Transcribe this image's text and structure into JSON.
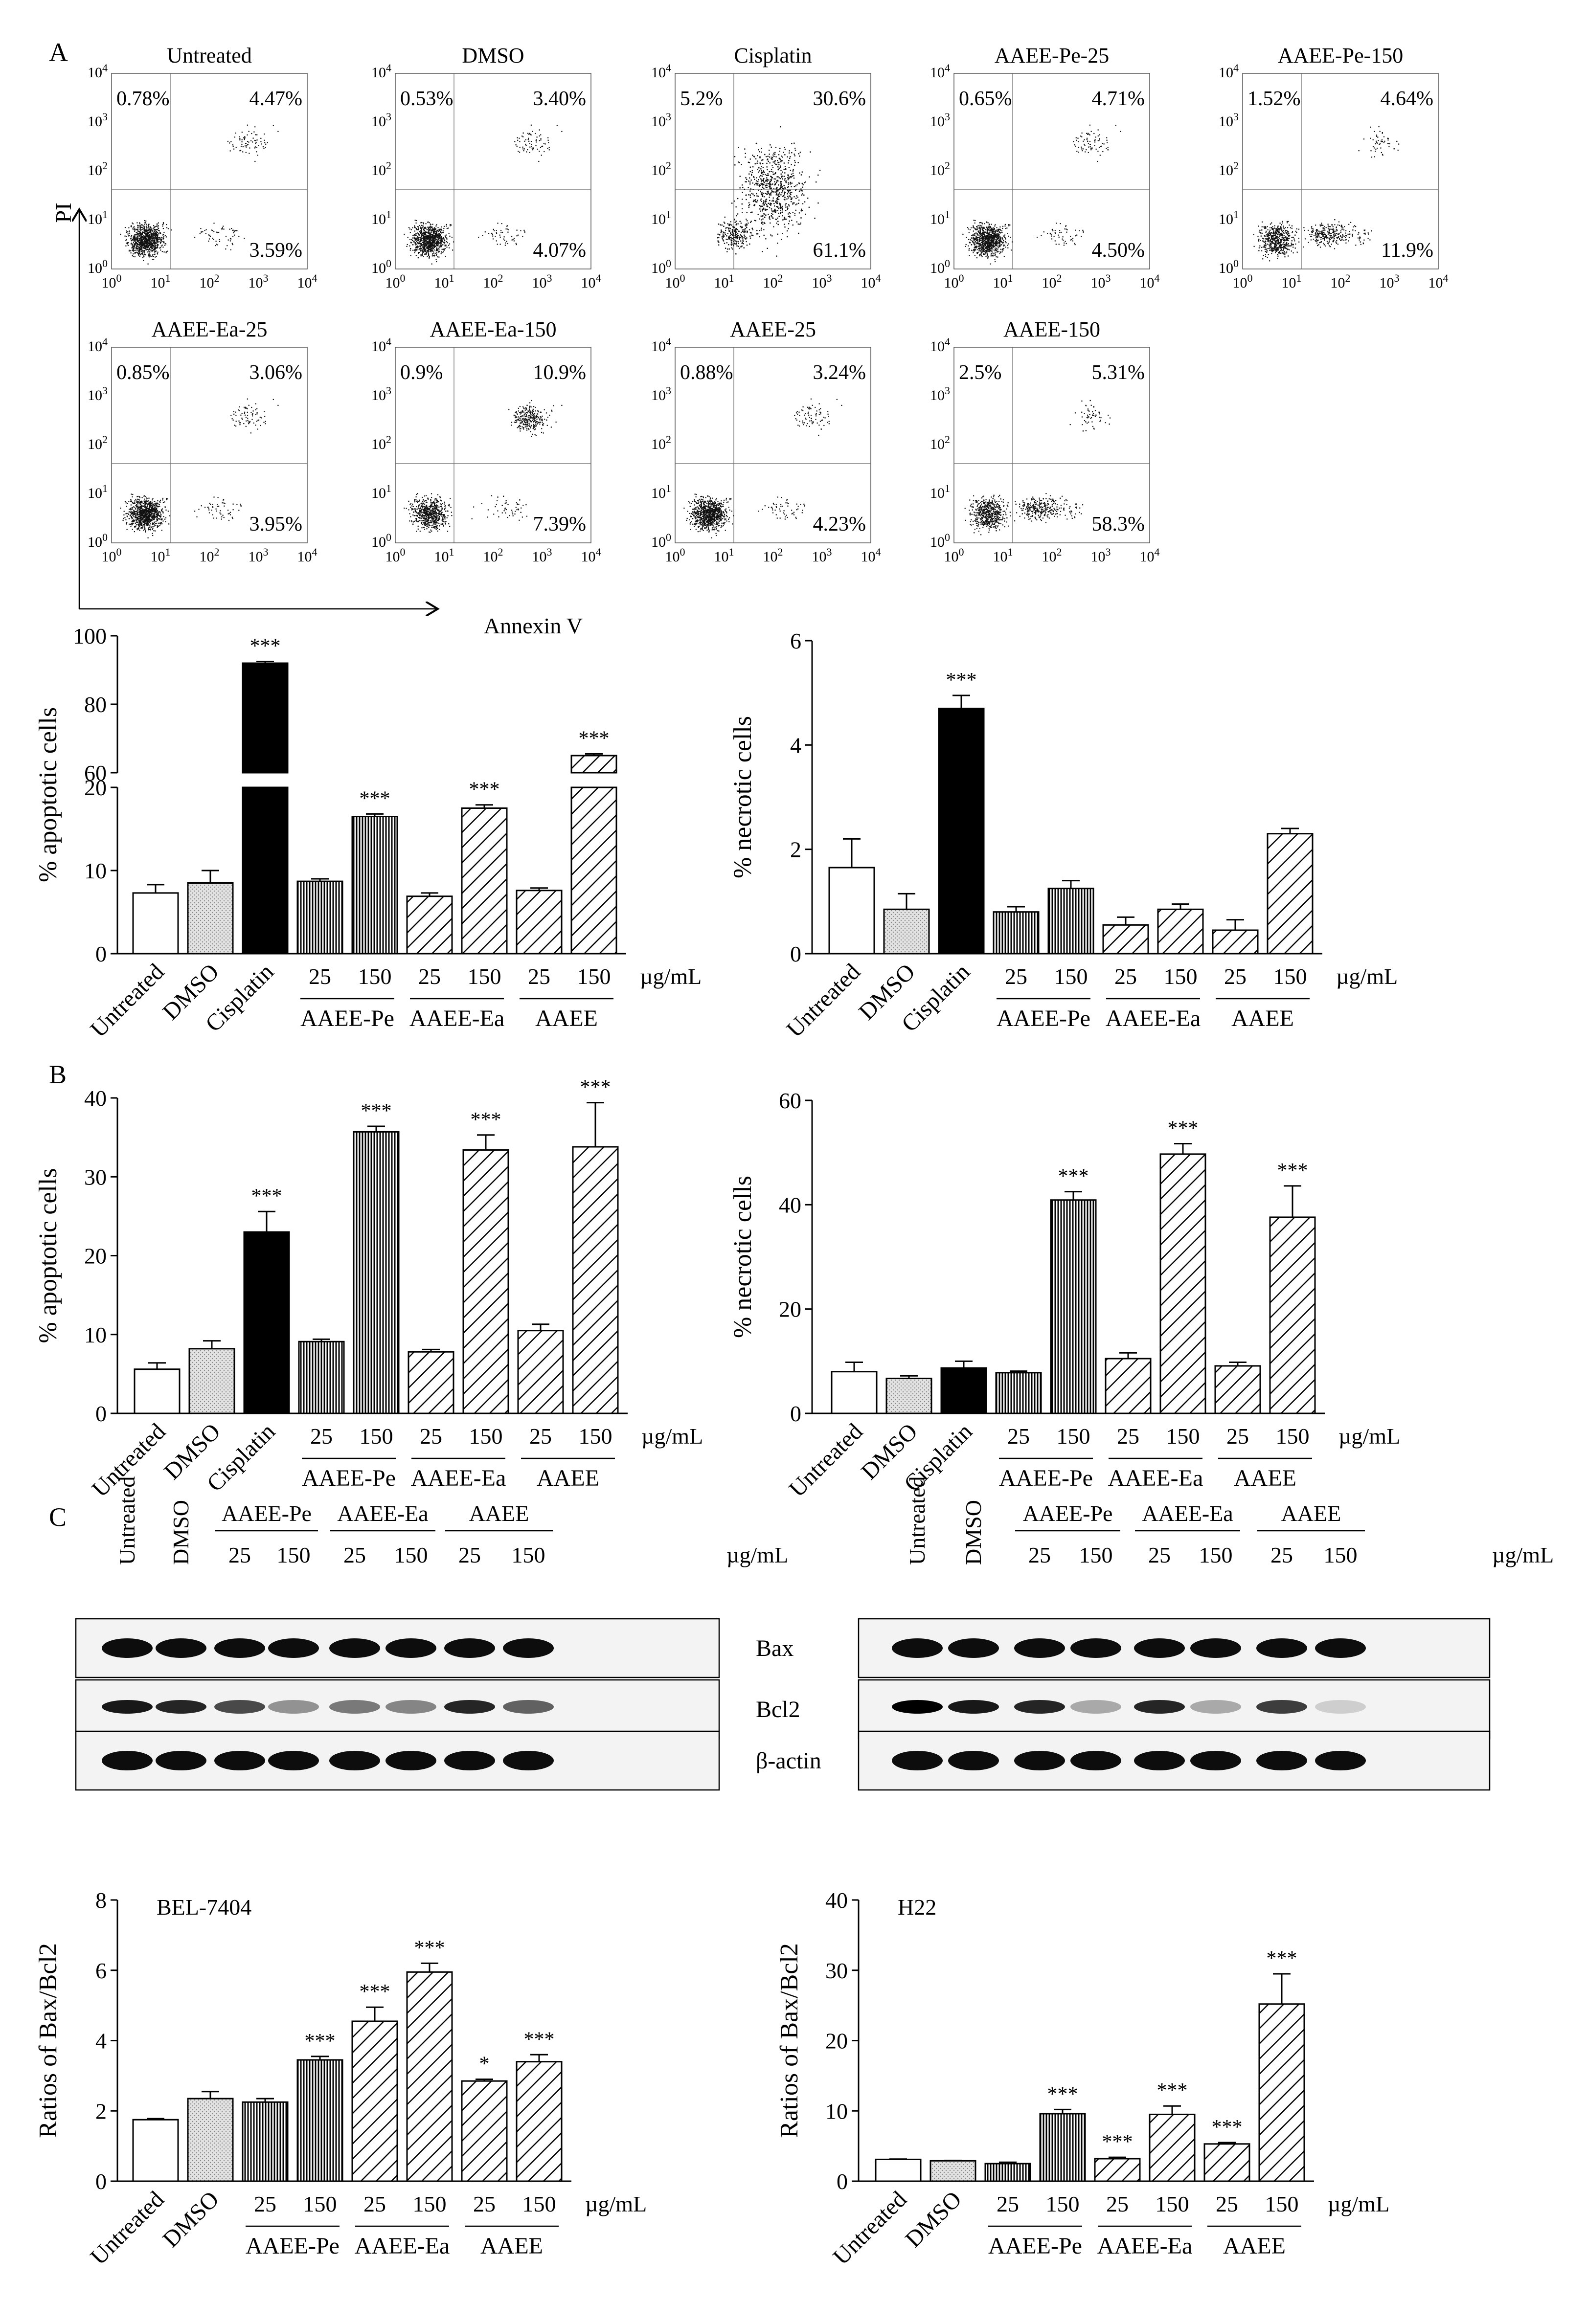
{
  "panel_labels": {
    "A": "A",
    "B": "B",
    "C": "C"
  },
  "flow": {
    "x_label": "Annexin V",
    "y_label": "PI",
    "tick_base": "10",
    "tick_exponents": [
      "0",
      "1",
      "2",
      "3",
      "4"
    ],
    "plots": [
      {
        "title": "Untreated",
        "ul": "0.78%",
        "ur": "4.47%",
        "lr": "3.59%",
        "pattern": "normal"
      },
      {
        "title": "DMSO",
        "ul": "0.53%",
        "ur": "3.40%",
        "lr": "4.07%",
        "pattern": "normal"
      },
      {
        "title": "Cisplatin",
        "ul": "5.2%",
        "ur": "30.6%",
        "lr": "61.1%",
        "pattern": "spread"
      },
      {
        "title": "AAEE-Pe-25",
        "ul": "0.65%",
        "ur": "4.71%",
        "lr": "4.50%",
        "pattern": "normal"
      },
      {
        "title": "AAEE-Pe-150",
        "ul": "1.52%",
        "ur": "4.64%",
        "lr": "11.9%",
        "pattern": "right"
      },
      {
        "title": "AAEE-Ea-25",
        "ul": "0.85%",
        "ur": "3.06%",
        "lr": "3.95%",
        "pattern": "normal"
      },
      {
        "title": "AAEE-Ea-150",
        "ul": "0.9%",
        "ur": "10.9%",
        "lr": "7.39%",
        "pattern": "upper"
      },
      {
        "title": "AAEE-25",
        "ul": "0.88%",
        "ur": "3.24%",
        "lr": "4.23%",
        "pattern": "normal"
      },
      {
        "title": "AAEE-150",
        "ul": "2.5%",
        "ur": "5.31%",
        "lr": "58.3%",
        "pattern": "right"
      }
    ]
  },
  "groups": {
    "conc_labels": [
      "25",
      "150"
    ],
    "unit": "µg/mL",
    "names": [
      "AAEE-Pe",
      "AAEE-Ea",
      "AAEE"
    ],
    "single_labels": [
      "Untreated",
      "DMSO",
      "Cisplatin"
    ]
  },
  "colors": {
    "black": "#000000",
    "dmso_fill": "#d9d9d9",
    "white": "#ffffff"
  },
  "chart_data": [
    {
      "id": "A_apoptotic",
      "type": "bar",
      "ylabel": "% apoptotic cells",
      "broken_axis": true,
      "ylim": [
        0,
        100
      ],
      "lower_ticks": [
        "0",
        "10",
        "20"
      ],
      "upper_ticks": [
        "60",
        "80",
        "100"
      ],
      "categories": [
        "Untreated",
        "DMSO",
        "Cisplatin",
        "AAEE-Pe 25",
        "AAEE-Pe 150",
        "AAEE-Ea 25",
        "AAEE-Ea 150",
        "AAEE 25",
        "AAEE 150"
      ],
      "values": [
        7.3,
        8.5,
        92,
        8.7,
        16.5,
        6.9,
        17.5,
        7.6,
        65
      ],
      "errors": [
        1.0,
        1.5,
        0.5,
        0.3,
        0.3,
        0.4,
        0.4,
        0.3,
        0.5
      ],
      "significance": [
        "",
        "",
        "***",
        "",
        "***",
        "",
        "***",
        "",
        "***"
      ]
    },
    {
      "id": "A_necrotic",
      "type": "bar",
      "ylabel": "% necrotic cells",
      "ylim": [
        0,
        6
      ],
      "ticks": [
        "0",
        "2",
        "4",
        "6"
      ],
      "categories": [
        "Untreated",
        "DMSO",
        "Cisplatin",
        "AAEE-Pe 25",
        "AAEE-Pe 150",
        "AAEE-Ea 25",
        "AAEE-Ea 150",
        "AAEE 25",
        "AAEE 150"
      ],
      "values": [
        1.65,
        0.85,
        4.7,
        0.8,
        1.25,
        0.55,
        0.85,
        0.45,
        2.3
      ],
      "errors": [
        0.55,
        0.3,
        0.25,
        0.1,
        0.15,
        0.15,
        0.1,
        0.2,
        0.1
      ],
      "significance": [
        "",
        "",
        "***",
        "",
        "",
        "",
        "",
        "",
        ""
      ]
    },
    {
      "id": "B_apoptotic",
      "type": "bar",
      "ylabel": "% apoptotic cells",
      "ylim": [
        0,
        40
      ],
      "ticks": [
        "0",
        "10",
        "20",
        "30",
        "40"
      ],
      "categories": [
        "Untreated",
        "DMSO",
        "Cisplatin",
        "AAEE-Pe 25",
        "AAEE-Pe 150",
        "AAEE-Ea 25",
        "AAEE-Ea 150",
        "AAEE 25",
        "AAEE 150"
      ],
      "values": [
        5.6,
        8.2,
        23,
        9.1,
        35.7,
        7.8,
        33.4,
        10.5,
        33.8
      ],
      "errors": [
        0.8,
        1.0,
        2.6,
        0.3,
        0.7,
        0.3,
        1.9,
        0.8,
        5.6
      ],
      "significance": [
        "",
        "",
        "***",
        "",
        "***",
        "",
        "***",
        "",
        "***"
      ]
    },
    {
      "id": "B_necrotic",
      "type": "bar",
      "ylabel": "% necrotic cells",
      "ylim": [
        0,
        60
      ],
      "ticks": [
        "0",
        "20",
        "40",
        "60"
      ],
      "categories": [
        "Untreated",
        "DMSO",
        "Cisplatin",
        "AAEE-Pe 25",
        "AAEE-Pe 150",
        "AAEE-Ea 25",
        "AAEE-Ea 150",
        "AAEE 25",
        "AAEE 150"
      ],
      "values": [
        8,
        6.7,
        8.7,
        7.8,
        40.9,
        10.5,
        49.7,
        9.1,
        37.6
      ],
      "errors": [
        1.8,
        0.5,
        1.3,
        0.3,
        1.6,
        1.1,
        2.0,
        0.7,
        6.0
      ],
      "significance": [
        "",
        "",
        "",
        "",
        "***",
        "",
        "***",
        "",
        "***"
      ]
    },
    {
      "id": "C_bel",
      "type": "bar",
      "title": "BEL-7404",
      "ylabel": "Ratios of Bax/Bcl2",
      "ylim": [
        0,
        8
      ],
      "ticks": [
        "0",
        "2",
        "4",
        "6",
        "8"
      ],
      "categories": [
        "Untreated",
        "DMSO",
        "AAEE-Pe 25",
        "AAEE-Pe 150",
        "AAEE-Ea 25",
        "AAEE-Ea 150",
        "AAEE 25",
        "AAEE 150"
      ],
      "values": [
        1.75,
        2.35,
        2.25,
        3.45,
        4.55,
        5.95,
        2.85,
        3.4
      ],
      "errors": [
        0.03,
        0.2,
        0.1,
        0.1,
        0.4,
        0.25,
        0.05,
        0.2
      ],
      "significance": [
        "",
        "",
        "",
        "***",
        "***",
        "***",
        "*",
        "***"
      ]
    },
    {
      "id": "C_h22",
      "type": "bar",
      "title": "H22",
      "ylabel": "Ratios of Bax/Bcl2",
      "ylim": [
        0,
        40
      ],
      "ticks": [
        "0",
        "10",
        "20",
        "30",
        "40"
      ],
      "categories": [
        "Untreated",
        "DMSO",
        "AAEE-Pe 25",
        "AAEE-Pe 150",
        "AAEE-Ea 25",
        "AAEE-Ea 150",
        "AAEE 25",
        "AAEE 150"
      ],
      "values": [
        3.1,
        2.9,
        2.5,
        9.6,
        3.2,
        9.5,
        5.3,
        25.2
      ],
      "errors": [
        0.05,
        0.05,
        0.2,
        0.6,
        0.2,
        1.2,
        0.2,
        4.3
      ],
      "significance": [
        "",
        "",
        "",
        "***",
        "***",
        "***",
        "***",
        "***"
      ]
    }
  ],
  "western": {
    "proteins": [
      "Bax",
      "Bcl2",
      "β-actin"
    ],
    "lane_labels": [
      "Untreated",
      "DMSO",
      "25",
      "150",
      "25",
      "150",
      "25",
      "150"
    ],
    "group_names": [
      "AAEE-Pe",
      "AAEE-Ea",
      "AAEE"
    ],
    "unit": "µg/mL"
  }
}
